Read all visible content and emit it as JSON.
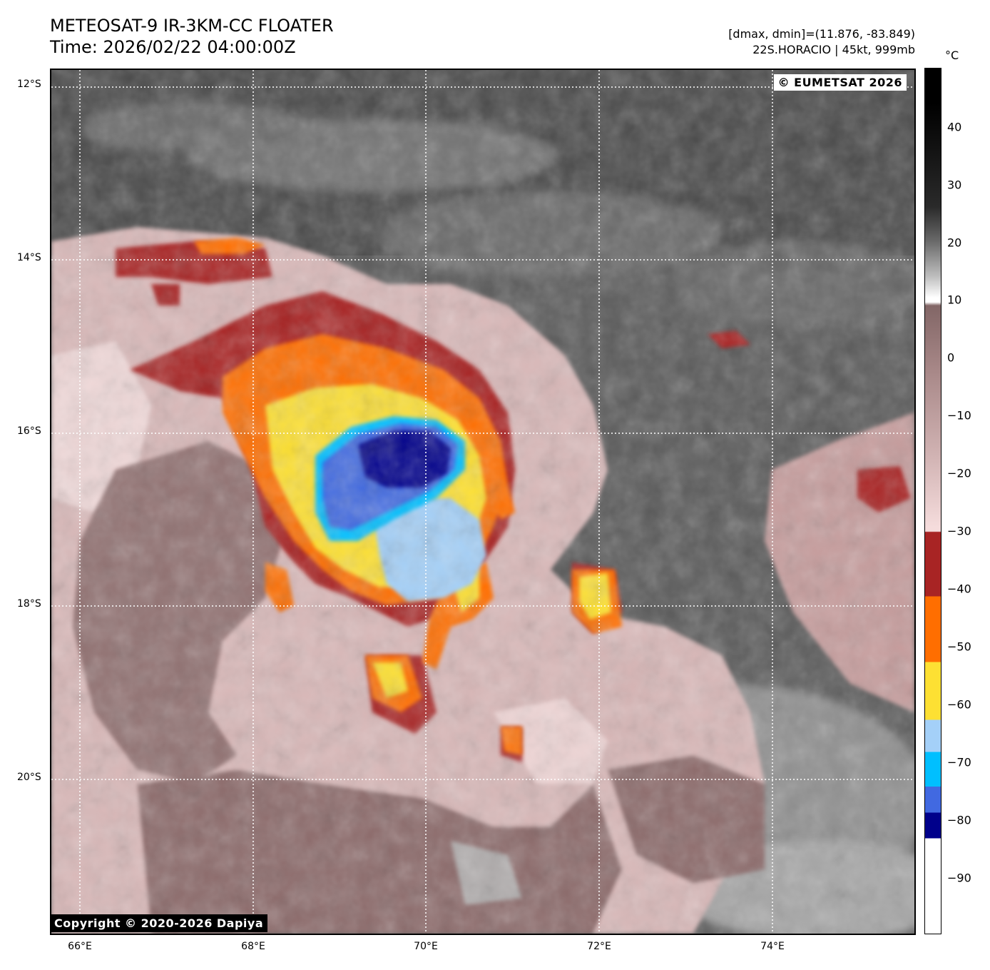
{
  "header": {
    "title_line1": "METEOSAT-9 IR-3KM-CC FLOATER",
    "title_line2": "Time: 2026/02/22 04:00:00Z",
    "dminmax": "[dmax, dmin]=(11.876, -83.849)",
    "storm_info": "22S.HORACIO | 45kt, 999mb"
  },
  "map": {
    "lat_labels": [
      "12°S",
      "14°S",
      "16°S",
      "18°S",
      "20°S"
    ],
    "lon_labels": [
      "66°E",
      "68°E",
      "70°E",
      "72°E",
      "74°E"
    ],
    "watermark_top": "© EUMETSAT 2026",
    "watermark_bottom": "Copyright © 2020-2026 Dapiya"
  },
  "colorbar": {
    "unit": "°C",
    "ticks": [
      "40",
      "30",
      "20",
      "10",
      "0",
      "−10",
      "−20",
      "−30",
      "−40",
      "−50",
      "−60",
      "−70",
      "−80",
      "−90"
    ],
    "colors": {
      "black": "#000000",
      "white": "#ffffff",
      "pink_light": "#f5dcdc",
      "brown": "#826666",
      "dark_red": "#a82424",
      "orange": "#ff6e00",
      "yellow": "#fde033",
      "light_blue": "#a4d0f8",
      "cyan": "#00bfff",
      "royal_blue": "#4169e1",
      "navy": "#00008b"
    }
  }
}
